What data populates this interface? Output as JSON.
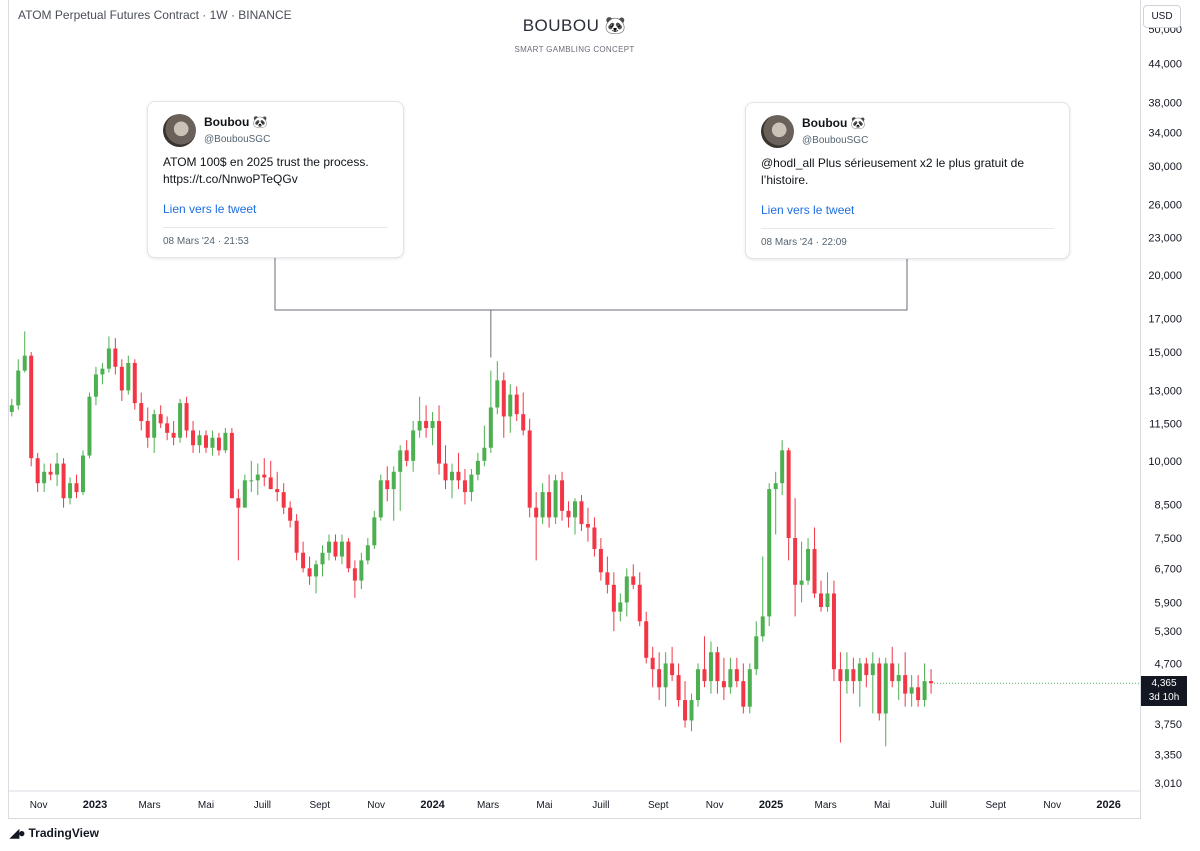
{
  "header": {
    "symbol_line": "ATOM Perpetual Futures Contract · 1W · BINANCE",
    "brand": "BOUBOU 🐼",
    "brand_sub": "SMART GAMBLING CONCEPT",
    "currency": "USD"
  },
  "tweets": [
    {
      "name": "Boubou 🐼",
      "handle": "@BoubouSGC",
      "text": "ATOM 100$ en 2025 trust the process. https://t.co/NnwoPTeQGv",
      "link_label": "Lien vers le tweet",
      "date": "08 Mars '24 · 21:53"
    },
    {
      "name": "Boubou 🐼",
      "handle": "@BoubouSGC",
      "text": "@hodl_all Plus sérieusement x2 le plus gratuit de l’histoire.",
      "link_label": "Lien vers le tweet",
      "date": "08 Mars '24 · 22:09"
    }
  ],
  "last_price": {
    "value": "4,365",
    "countdown": "3d 10h"
  },
  "footer": {
    "logo_text": "TradingView"
  },
  "colors": {
    "up": "#4caf50",
    "down": "#f23645",
    "grid": "#f0f3fa",
    "axis_text": "#131722"
  },
  "chart_data": {
    "type": "candlestick",
    "title": "ATOM Perpetual Futures Contract · 1W · BINANCE",
    "scale": "log",
    "ylim": [
      2.95,
      52
    ],
    "grid": false,
    "y_ticks": [
      "3,010",
      "3,350",
      "3,750",
      "4,700",
      "5,300",
      "5,900",
      "6,700",
      "7,500",
      "8,500",
      "10,000",
      "11,500",
      "13,000",
      "15,000",
      "17,000",
      "20,000",
      "23,000",
      "26,000",
      "30,000",
      "34,000",
      "38,000",
      "44,000",
      "50,000"
    ],
    "x_ticks": [
      {
        "label": "Nov",
        "date": "2022-11-01"
      },
      {
        "label": "2023",
        "date": "2023-01-01"
      },
      {
        "label": "Mars",
        "date": "2023-03-01"
      },
      {
        "label": "Mai",
        "date": "2023-05-01"
      },
      {
        "label": "Juill",
        "date": "2023-07-01"
      },
      {
        "label": "Sept",
        "date": "2023-09-01"
      },
      {
        "label": "Nov",
        "date": "2023-11-01"
      },
      {
        "label": "2024",
        "date": "2024-01-01"
      },
      {
        "label": "Mars",
        "date": "2024-03-01"
      },
      {
        "label": "Mai",
        "date": "2024-05-01"
      },
      {
        "label": "Juill",
        "date": "2024-07-01"
      },
      {
        "label": "Sept",
        "date": "2024-09-01"
      },
      {
        "label": "Nov",
        "date": "2024-11-01"
      },
      {
        "label": "2025",
        "date": "2025-01-01"
      },
      {
        "label": "Mars",
        "date": "2025-03-01"
      },
      {
        "label": "Mai",
        "date": "2025-05-01"
      },
      {
        "label": "Juill",
        "date": "2025-07-01"
      },
      {
        "label": "Sept",
        "date": "2025-09-01"
      },
      {
        "label": "Nov",
        "date": "2025-11-01"
      },
      {
        "label": "2026",
        "date": "2026-01-01"
      }
    ],
    "x_axis_start": "2022-09-30",
    "x_axis_end": "2026-02-05",
    "first_candle_date": "2022-10-03",
    "bar_interval_days": 7,
    "candles": [
      [
        12.0,
        12.6,
        11.8,
        12.3
      ],
      [
        12.3,
        14.6,
        12.1,
        14.0
      ],
      [
        14.0,
        16.2,
        13.9,
        14.8
      ],
      [
        14.8,
        15.0,
        9.8,
        10.1
      ],
      [
        10.1,
        10.3,
        8.9,
        9.2
      ],
      [
        9.2,
        9.9,
        8.9,
        9.6
      ],
      [
        9.6,
        9.9,
        9.3,
        9.5
      ],
      [
        9.5,
        10.3,
        9.1,
        9.9
      ],
      [
        9.9,
        10.1,
        8.4,
        8.7
      ],
      [
        8.7,
        9.4,
        8.5,
        9.2
      ],
      [
        9.2,
        9.5,
        8.7,
        8.9
      ],
      [
        8.9,
        10.4,
        8.8,
        10.2
      ],
      [
        10.2,
        12.9,
        10.1,
        12.7
      ],
      [
        12.7,
        14.2,
        12.3,
        13.8
      ],
      [
        13.8,
        14.4,
        13.3,
        14.1
      ],
      [
        14.1,
        15.9,
        13.9,
        15.2
      ],
      [
        15.2,
        15.8,
        13.8,
        14.2
      ],
      [
        14.2,
        14.6,
        12.5,
        13.0
      ],
      [
        13.0,
        14.8,
        12.8,
        14.4
      ],
      [
        14.4,
        14.6,
        12.1,
        12.4
      ],
      [
        12.4,
        12.9,
        11.2,
        11.6
      ],
      [
        11.6,
        12.2,
        10.5,
        10.9
      ],
      [
        10.9,
        12.1,
        10.3,
        11.9
      ],
      [
        11.9,
        12.3,
        11.3,
        11.5
      ],
      [
        11.5,
        11.8,
        10.8,
        11.1
      ],
      [
        11.1,
        11.6,
        10.6,
        10.9
      ],
      [
        10.9,
        12.6,
        10.7,
        12.4
      ],
      [
        12.4,
        12.7,
        10.9,
        11.2
      ],
      [
        11.2,
        11.6,
        10.3,
        10.6
      ],
      [
        10.6,
        11.2,
        10.3,
        11.0
      ],
      [
        11.0,
        11.2,
        10.3,
        10.5
      ],
      [
        10.5,
        11.2,
        10.2,
        10.9
      ],
      [
        10.9,
        11.1,
        10.2,
        10.4
      ],
      [
        10.4,
        11.3,
        10.3,
        11.1
      ],
      [
        11.1,
        11.3,
        8.7,
        8.7
      ],
      [
        8.7,
        9.0,
        6.9,
        8.4
      ],
      [
        8.4,
        9.5,
        8.4,
        9.3
      ],
      [
        9.3,
        10.0,
        8.9,
        9.3
      ],
      [
        9.3,
        9.9,
        8.8,
        9.5
      ],
      [
        9.5,
        10.1,
        9.1,
        9.4
      ],
      [
        9.4,
        10.0,
        9.0,
        9.0
      ],
      [
        9.0,
        9.6,
        8.6,
        8.9
      ],
      [
        8.9,
        9.2,
        8.2,
        8.4
      ],
      [
        8.4,
        8.6,
        7.8,
        8.0
      ],
      [
        8.0,
        8.2,
        6.9,
        7.1
      ],
      [
        7.1,
        7.4,
        6.6,
        6.7
      ],
      [
        6.7,
        7.0,
        6.3,
        6.5
      ],
      [
        6.5,
        6.9,
        6.1,
        6.8
      ],
      [
        6.8,
        7.3,
        6.5,
        7.1
      ],
      [
        7.1,
        7.6,
        6.9,
        7.4
      ],
      [
        7.4,
        7.6,
        6.9,
        7.0
      ],
      [
        7.0,
        7.6,
        6.8,
        7.4
      ],
      [
        7.4,
        7.5,
        6.6,
        6.7
      ],
      [
        6.7,
        6.9,
        6.0,
        6.4
      ],
      [
        6.4,
        7.1,
        6.2,
        6.9
      ],
      [
        6.9,
        7.5,
        6.8,
        7.3
      ],
      [
        7.3,
        8.3,
        7.2,
        8.1
      ],
      [
        8.1,
        9.5,
        8.0,
        9.3
      ],
      [
        9.3,
        9.8,
        8.6,
        9.0
      ],
      [
        9.0,
        9.8,
        8.0,
        9.6
      ],
      [
        9.6,
        10.6,
        8.3,
        10.4
      ],
      [
        10.4,
        10.8,
        9.8,
        10.0
      ],
      [
        10.0,
        11.6,
        9.6,
        11.2
      ],
      [
        11.2,
        12.7,
        10.9,
        11.6
      ],
      [
        11.6,
        12.3,
        10.9,
        11.3
      ],
      [
        11.3,
        12.0,
        10.6,
        11.6
      ],
      [
        11.6,
        12.3,
        9.5,
        9.9
      ],
      [
        9.9,
        10.6,
        9.0,
        9.3
      ],
      [
        9.3,
        9.9,
        8.7,
        9.6
      ],
      [
        9.6,
        10.3,
        9.0,
        9.3
      ],
      [
        9.3,
        9.7,
        8.5,
        8.9
      ],
      [
        8.9,
        9.7,
        8.6,
        9.5
      ],
      [
        9.5,
        10.3,
        9.3,
        10.0
      ],
      [
        10.0,
        11.4,
        9.8,
        10.5
      ],
      [
        10.5,
        14.0,
        10.3,
        12.2
      ],
      [
        12.2,
        14.5,
        11.9,
        13.5
      ],
      [
        13.5,
        13.9,
        10.9,
        11.8
      ],
      [
        11.8,
        13.3,
        11.1,
        12.8
      ],
      [
        12.8,
        13.2,
        11.6,
        11.9
      ],
      [
        11.9,
        12.9,
        11.0,
        11.2
      ],
      [
        11.2,
        11.7,
        8.1,
        8.4
      ],
      [
        8.4,
        8.9,
        6.9,
        8.1
      ],
      [
        8.1,
        9.2,
        7.9,
        8.9
      ],
      [
        8.9,
        9.5,
        7.8,
        8.1
      ],
      [
        8.1,
        9.5,
        7.9,
        9.3
      ],
      [
        9.3,
        9.6,
        8.0,
        8.3
      ],
      [
        8.3,
        8.6,
        7.8,
        8.1
      ],
      [
        8.1,
        8.7,
        7.6,
        8.6
      ],
      [
        8.6,
        8.8,
        7.7,
        7.9
      ],
      [
        7.9,
        8.4,
        7.4,
        7.8
      ],
      [
        7.8,
        8.1,
        7.0,
        7.2
      ],
      [
        7.2,
        7.5,
        6.4,
        6.6
      ],
      [
        6.6,
        7.0,
        6.1,
        6.3
      ],
      [
        6.3,
        6.6,
        5.3,
        5.7
      ],
      [
        5.7,
        6.1,
        5.5,
        5.9
      ],
      [
        5.9,
        6.7,
        5.6,
        6.5
      ],
      [
        6.5,
        6.8,
        6.2,
        6.3
      ],
      [
        6.3,
        6.6,
        5.4,
        5.5
      ],
      [
        5.5,
        5.7,
        4.7,
        4.8
      ],
      [
        4.8,
        5.0,
        4.3,
        4.6
      ],
      [
        4.6,
        4.9,
        4.1,
        4.3
      ],
      [
        4.3,
        4.9,
        4.0,
        4.7
      ],
      [
        4.7,
        5.0,
        4.4,
        4.5
      ],
      [
        4.5,
        4.7,
        4.0,
        4.1
      ],
      [
        4.1,
        4.4,
        3.7,
        3.8
      ],
      [
        3.8,
        4.2,
        3.65,
        4.1
      ],
      [
        4.1,
        4.7,
        4.0,
        4.6
      ],
      [
        4.6,
        5.2,
        4.3,
        4.4
      ],
      [
        4.4,
        5.1,
        4.2,
        4.9
      ],
      [
        4.9,
        5.0,
        4.2,
        4.4
      ],
      [
        4.4,
        4.8,
        4.1,
        4.3
      ],
      [
        4.3,
        4.8,
        4.2,
        4.6
      ],
      [
        4.6,
        4.8,
        4.3,
        4.4
      ],
      [
        4.4,
        4.7,
        3.9,
        4.0
      ],
      [
        4.0,
        4.7,
        3.9,
        4.6
      ],
      [
        4.6,
        5.5,
        4.5,
        5.2
      ],
      [
        5.2,
        7.0,
        5.1,
        5.6
      ],
      [
        5.6,
        9.2,
        5.4,
        9.0
      ],
      [
        9.0,
        9.6,
        7.6,
        9.2
      ],
      [
        9.2,
        10.8,
        8.8,
        10.4
      ],
      [
        10.4,
        10.5,
        6.9,
        7.5
      ],
      [
        7.5,
        8.7,
        5.6,
        6.3
      ],
      [
        6.3,
        7.4,
        5.9,
        6.4
      ],
      [
        6.4,
        7.5,
        6.3,
        7.2
      ],
      [
        7.2,
        7.8,
        6.0,
        6.1
      ],
      [
        6.1,
        6.4,
        5.7,
        5.8
      ],
      [
        5.8,
        6.6,
        5.7,
        6.1
      ],
      [
        6.1,
        6.4,
        4.4,
        4.6
      ],
      [
        4.6,
        4.9,
        3.5,
        4.4
      ],
      [
        4.4,
        4.9,
        4.2,
        4.6
      ],
      [
        4.6,
        4.8,
        4.2,
        4.4
      ],
      [
        4.4,
        4.8,
        4.0,
        4.7
      ],
      [
        4.7,
        4.8,
        4.3,
        4.5
      ],
      [
        4.5,
        4.9,
        3.9,
        4.7
      ],
      [
        4.7,
        4.8,
        3.8,
        3.9
      ],
      [
        3.9,
        4.8,
        3.45,
        4.7
      ],
      [
        4.7,
        5.0,
        4.3,
        4.4
      ],
      [
        4.4,
        4.7,
        4.1,
        4.5
      ],
      [
        4.5,
        4.9,
        4.0,
        4.2
      ],
      [
        4.2,
        4.5,
        4.0,
        4.3
      ],
      [
        4.3,
        4.5,
        4.0,
        4.1
      ],
      [
        4.1,
        4.7,
        4.0,
        4.4
      ],
      [
        4.4,
        4.6,
        4.2,
        4.365
      ]
    ],
    "annotation_anchor_date": "2024-03-04",
    "last_value": 4.365
  }
}
